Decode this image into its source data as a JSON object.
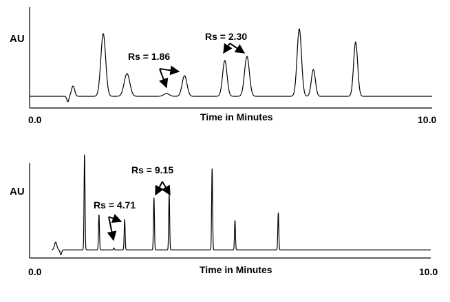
{
  "chart_data": [
    {
      "type": "line",
      "panel": "top",
      "ylabel": "AU",
      "xlabel": "Time in Minutes",
      "xlim": [
        0,
        10
      ],
      "xticks": [
        "0.0",
        "10.0"
      ],
      "grid": false,
      "baseline": 0.02,
      "peaks": [
        {
          "t": 1.08,
          "h": 0.15,
          "w": 0.04
        },
        {
          "t": 1.83,
          "h": 0.91,
          "w": 0.06
        },
        {
          "t": 2.42,
          "h": 0.33,
          "w": 0.07
        },
        {
          "t": 3.4,
          "h": 0.04,
          "w": 0.07
        },
        {
          "t": 3.85,
          "h": 0.3,
          "w": 0.06
        },
        {
          "t": 4.85,
          "h": 0.52,
          "w": 0.055
        },
        {
          "t": 5.4,
          "h": 0.58,
          "w": 0.06
        },
        {
          "t": 6.7,
          "h": 0.98,
          "w": 0.055
        },
        {
          "t": 7.05,
          "h": 0.39,
          "w": 0.05
        },
        {
          "t": 8.1,
          "h": 0.79,
          "w": 0.05
        }
      ],
      "dips": [
        {
          "t": 0.95,
          "h": -0.08,
          "w": 0.025
        }
      ],
      "annotations": [
        {
          "text": "Rs = 1.86",
          "targets": [
            3.4,
            3.85
          ]
        },
        {
          "text": "Rs = 2.30",
          "targets": [
            4.85,
            5.4
          ]
        }
      ]
    },
    {
      "type": "line",
      "panel": "bottom",
      "ylabel": "AU",
      "xlabel": "Time in Minutes",
      "xlim": [
        0,
        10
      ],
      "xticks": [
        "0.0",
        "10.0"
      ],
      "grid": false,
      "baseline": 0.02,
      "peaks": [
        {
          "t": 0.65,
          "h": 0.08,
          "w": 0.03
        },
        {
          "t": 1.37,
          "h": 1.0,
          "w": 0.012
        },
        {
          "t": 1.73,
          "h": 0.37,
          "w": 0.012
        },
        {
          "t": 2.1,
          "h": 0.02,
          "w": 0.012
        },
        {
          "t": 2.37,
          "h": 0.32,
          "w": 0.012
        },
        {
          "t": 3.1,
          "h": 0.55,
          "w": 0.012
        },
        {
          "t": 3.48,
          "h": 0.58,
          "w": 0.012
        },
        {
          "t": 4.55,
          "h": 0.85,
          "w": 0.012
        },
        {
          "t": 5.12,
          "h": 0.31,
          "w": 0.012
        },
        {
          "t": 6.2,
          "h": 0.39,
          "w": 0.012
        }
      ],
      "dips": [
        {
          "t": 0.78,
          "h": -0.05,
          "w": 0.02
        }
      ],
      "annotations": [
        {
          "text": "Rs = 4.71",
          "targets": [
            2.1,
            2.37
          ]
        },
        {
          "text": "Rs = 9.15",
          "targets": [
            3.1,
            3.48
          ]
        }
      ]
    }
  ]
}
